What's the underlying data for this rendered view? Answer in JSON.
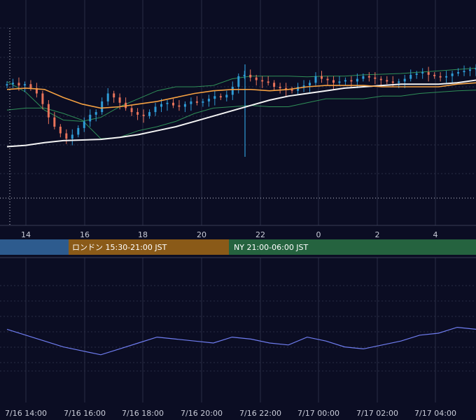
{
  "colors": {
    "background": "#0b0d23",
    "grid": "#2a2d45",
    "candle_up": "#2e9bd6",
    "candle_down": "#e8735a",
    "bb": "#2f8f58",
    "ma_short": "#f5a142",
    "ma_long": "#f4f4f4",
    "oscillator": "#6f7df0",
    "tick_text": "#c9ccd8"
  },
  "sessions": [
    {
      "label": "",
      "color": "#2d5b8e"
    },
    {
      "label": "ロンドン 15:30-21:00 JST",
      "color": "#8a5a18"
    },
    {
      "label": "NY 21:00-06:00 JST",
      "color": "#25633f"
    }
  ],
  "chart_data": {
    "type": "line",
    "subcharts": [
      "candlestick with bollinger bands and moving averages",
      "oscillator"
    ],
    "grid": true,
    "price_x_ticks": [
      "14",
      "16",
      "18",
      "20",
      "22",
      "0",
      "2",
      "4"
    ],
    "osc_x_ticks": [
      "7/16 14:00",
      "7/16 16:00",
      "7/16 18:00",
      "7/16 20:00",
      "7/16 22:00",
      "7/17 00:00",
      "7/17 02:00",
      "7/17 04:00"
    ],
    "bb_upper": [
      88,
      72,
      45,
      30,
      28,
      34,
      50,
      62,
      74,
      80,
      80,
      82,
      92,
      96,
      96,
      96,
      95,
      96,
      96,
      98,
      99,
      100,
      102,
      104,
      106,
      108
    ],
    "bb_lower": [
      45,
      48,
      48,
      40,
      30,
      2,
      4,
      14,
      20,
      28,
      40,
      48,
      50,
      52,
      50,
      50,
      56,
      62,
      62,
      62,
      66,
      66,
      70,
      72,
      74,
      75
    ],
    "ma_short": [
      76,
      78,
      76,
      64,
      54,
      48,
      50,
      54,
      58,
      64,
      70,
      74,
      76,
      76,
      74,
      76,
      80,
      82,
      82,
      82,
      80,
      80,
      80,
      80,
      84,
      86
    ],
    "ma_long": [
      -10,
      -8,
      -4,
      -1,
      0,
      1,
      4,
      8,
      14,
      20,
      28,
      36,
      44,
      52,
      60,
      66,
      70,
      74,
      78,
      80,
      82,
      84,
      84,
      84,
      86,
      90
    ],
    "oscillator": [
      64,
      58,
      52,
      46,
      42,
      38,
      44,
      50,
      56,
      54,
      52,
      50,
      56,
      54,
      50,
      48,
      56,
      52,
      46,
      44,
      48,
      52,
      58,
      60,
      66,
      64
    ],
    "candles_close": [
      84,
      86,
      82,
      84,
      78,
      70,
      54,
      34,
      20,
      10,
      2,
      8,
      18,
      28,
      38,
      42,
      58,
      70,
      64,
      56,
      48,
      42,
      38,
      36,
      42,
      50,
      54,
      56,
      52,
      50,
      54,
      58,
      56,
      58,
      62,
      66,
      64,
      68,
      80,
      96,
      98,
      94,
      90,
      88,
      86,
      80,
      78,
      76,
      74,
      80,
      82,
      86,
      96,
      92,
      90,
      86,
      88,
      90,
      88,
      92,
      96,
      94,
      92,
      90,
      88,
      86,
      88,
      92,
      98,
      100,
      102,
      98,
      96,
      94,
      96,
      100,
      102,
      104,
      106,
      108
    ]
  }
}
